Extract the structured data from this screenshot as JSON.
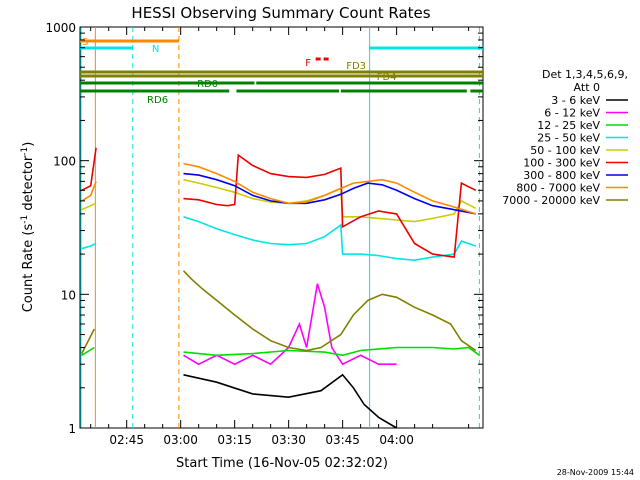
{
  "chart_data": {
    "type": "line",
    "title": "HESSI Observing Summary Count Rates",
    "xlabel": "Start Time (16-Nov-05 02:32:02)",
    "ylabel_main": "Count Rate (s",
    "ylabel_sup1": "-1",
    "ylabel_mid": " detector",
    "ylabel_sup2": "-1",
    "ylabel_end": ")",
    "footer": "28-Nov-2009 15:44",
    "x_minutes_from": 152.03,
    "x_minutes_to": 264,
    "ylim": [
      1,
      1000
    ],
    "yscale": "log",
    "x_ticks": [
      {
        "label": "02:45",
        "minute": 165
      },
      {
        "label": "03:00",
        "minute": 180
      },
      {
        "label": "03:15",
        "minute": 195
      },
      {
        "label": "03:30",
        "minute": 210
      },
      {
        "label": "03:45",
        "minute": 225
      },
      {
        "label": "04:00",
        "minute": 240
      }
    ],
    "y_ticks": [
      {
        "label": "1",
        "value": 1
      },
      {
        "label": "10",
        "value": 10
      },
      {
        "label": "100",
        "value": 100
      },
      {
        "label": "1000",
        "value": 1000
      }
    ],
    "legend": {
      "header1": "Det 1,3,4,5,6,9,",
      "header2": "Att 0",
      "entries": [
        {
          "label": "3 - 6 keV",
          "color": "#000000"
        },
        {
          "label": "6 - 12 keV",
          "color": "#ff00ff"
        },
        {
          "label": "12 - 25 keV",
          "color": "#00dd00"
        },
        {
          "label": "25 - 50 keV",
          "color": "#00e5e5"
        },
        {
          "label": "50 - 100 keV",
          "color": "#cccc00"
        },
        {
          "label": "100 - 300 keV",
          "color": "#ee0000"
        },
        {
          "label": "300 - 800 keV",
          "color": "#0000ee"
        },
        {
          "label": "800 - 7000 keV",
          "color": "#ff8800"
        },
        {
          "label": "7000 - 20000 keV",
          "color": "#808000"
        }
      ]
    },
    "flags": [
      {
        "label": "S",
        "color": "#ff8800",
        "segments": [
          [
            152.03,
            179.5
          ]
        ]
      },
      {
        "label": "N",
        "color": "#00e5e5",
        "segments": [
          [
            152.03,
            166.7
          ],
          [
            232.5,
            264
          ]
        ]
      },
      {
        "label": "F",
        "color": "#ee0000",
        "segments": [
          [
            217.5,
            221.5
          ]
        ]
      },
      {
        "label": "FD3",
        "color": "#808000",
        "segments": [
          [
            152.03,
            264
          ]
        ]
      },
      {
        "label": "FD4",
        "color": "#808000",
        "segments": [
          [
            152.03,
            264
          ]
        ]
      },
      {
        "label": "RD0",
        "color": "#008000",
        "segments": [
          [
            152.03,
            200.5
          ],
          [
            201,
            264
          ]
        ]
      },
      {
        "label": "RD6",
        "color": "#008000",
        "segments": [
          [
            152.03,
            193.5
          ],
          [
            195.5,
            224
          ],
          [
            224.5,
            259.5
          ],
          [
            260.5,
            264
          ]
        ]
      }
    ],
    "vlines": [
      {
        "minute": 156.3,
        "color": "#ff8800",
        "dashed": false
      },
      {
        "minute": 152.3,
        "color": "#00e5e5",
        "dashed": false
      },
      {
        "minute": 166.7,
        "color": "#00e5e5",
        "dashed": true
      },
      {
        "minute": 179.5,
        "color": "#ff8800",
        "dashed": true
      },
      {
        "minute": 232.5,
        "color": "#00e5e5",
        "dashed": false
      },
      {
        "minute": 263.0,
        "color": "#00e5e5",
        "dashed": true
      }
    ],
    "gaps": [
      [
        157.5,
        180.5
      ]
    ],
    "series": [
      {
        "name": "3 - 6 keV",
        "color": "#000000",
        "x": [
          180.8,
          190,
          200,
          210,
          219,
          225,
          228,
          231,
          235,
          240
        ],
        "y": [
          2.5,
          2.2,
          1.8,
          1.7,
          1.9,
          2.5,
          2.0,
          1.5,
          1.2,
          1.0
        ]
      },
      {
        "name": "6 - 12 keV",
        "color": "#ff00ff",
        "x": [
          180.8,
          185,
          190,
          195,
          200,
          205,
          210,
          213,
          215,
          218,
          220,
          222,
          225,
          230,
          235,
          240
        ],
        "y": [
          3.5,
          3.0,
          3.5,
          3.0,
          3.5,
          3.0,
          4.0,
          6.0,
          4.0,
          12.0,
          8.0,
          4.0,
          3.0,
          3.5,
          3.0,
          3.0
        ]
      },
      {
        "name": "12 - 25 keV",
        "color": "#00dd00",
        "x": [
          152.5,
          156,
          180.8,
          190,
          200,
          210,
          220,
          225,
          230,
          240,
          250,
          256,
          260,
          263
        ],
        "y": [
          3.5,
          4.0,
          3.7,
          3.5,
          3.6,
          3.8,
          3.7,
          3.5,
          3.8,
          4.0,
          4.0,
          3.9,
          4.0,
          3.5
        ]
      },
      {
        "name": "25 - 50 keV",
        "color": "#00e5e5",
        "x": [
          152.5,
          155,
          156.5,
          180.8,
          185,
          190,
          195,
          200,
          205,
          210,
          215,
          220,
          224.5,
          225,
          230,
          235,
          240,
          245,
          250,
          256,
          258,
          262
        ],
        "y": [
          22,
          23,
          24,
          38,
          35,
          31,
          28,
          25.5,
          24,
          23.5,
          24,
          27,
          33,
          20,
          20,
          19.5,
          18.5,
          18,
          19,
          20,
          25,
          23
        ]
      },
      {
        "name": "50 - 100 keV",
        "color": "#cccc00",
        "x": [
          152.5,
          155,
          156.5,
          180.8,
          185,
          190,
          195,
          200,
          205,
          210,
          215,
          220,
          224.5,
          225,
          230,
          235,
          240,
          245,
          250,
          256,
          258,
          262
        ],
        "y": [
          43,
          46,
          48,
          72,
          68,
          63,
          58,
          52,
          49,
          48,
          50,
          55,
          62,
          38,
          38,
          37,
          36,
          35,
          37,
          40,
          50,
          44
        ]
      },
      {
        "name": "100 - 300 keV",
        "color": "#ee0000",
        "x": [
          152.5,
          155,
          156.5,
          180.8,
          185,
          190,
          193,
          195,
          196,
          200,
          205,
          210,
          215,
          220,
          224.5,
          225,
          230,
          235,
          240,
          245,
          250,
          256,
          258,
          262
        ],
        "y": [
          60,
          65,
          125,
          52,
          51,
          47,
          46,
          47,
          110,
          92,
          80,
          76,
          75,
          79,
          88,
          32,
          38,
          42,
          40,
          24,
          20,
          19,
          68,
          60
        ]
      },
      {
        "name": "300 - 800 keV",
        "color": "#0000ee",
        "x": [
          180.8,
          185,
          190,
          195,
          200,
          205,
          210,
          215,
          220,
          224.5,
          228,
          232,
          236,
          240,
          245,
          250,
          256,
          262
        ],
        "y": [
          80,
          78,
          72,
          65,
          55,
          50,
          48,
          48,
          51,
          56,
          62,
          68,
          66,
          60,
          52,
          46,
          43,
          40
        ]
      },
      {
        "name": "800 - 7000 keV",
        "color": "#ff8800",
        "x": [
          152.5,
          155,
          156.5,
          180.8,
          185,
          190,
          195,
          200,
          205,
          210,
          215,
          220,
          224.5,
          228,
          232,
          236,
          240,
          245,
          250,
          256,
          262
        ],
        "y": [
          50,
          55,
          70,
          95,
          90,
          80,
          70,
          58,
          52,
          48,
          49,
          55,
          62,
          68,
          70,
          72,
          68,
          58,
          50,
          45,
          40
        ]
      },
      {
        "name": "7000 - 20000 keV",
        "color": "#808000",
        "x": [
          152.5,
          156,
          180.8,
          183,
          186,
          190,
          195,
          200,
          205,
          210,
          215,
          219,
          224.5,
          228,
          232,
          236,
          240,
          245,
          250,
          255,
          258,
          262
        ],
        "y": [
          3.6,
          5.5,
          15,
          13,
          11,
          9,
          7,
          5.5,
          4.5,
          4.0,
          3.8,
          4.0,
          5.0,
          7,
          9,
          10,
          9.5,
          8,
          7,
          6,
          4.5,
          3.8
        ]
      }
    ]
  }
}
